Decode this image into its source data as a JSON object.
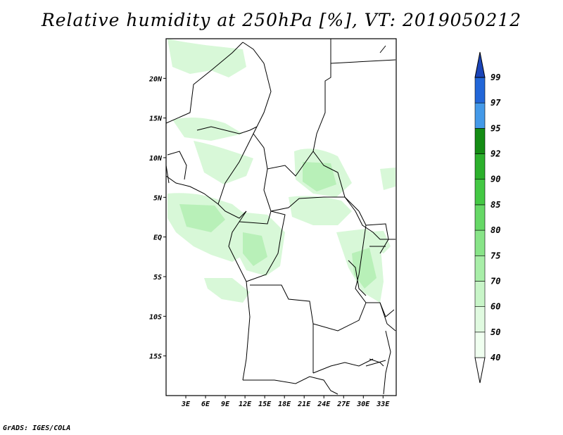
{
  "title": "Relative humidity at 250hPa [%], VT: 2019050212",
  "credit": "GrADS: IGES/COLA",
  "map": {
    "lon_range": [
      0,
      35
    ],
    "lat_range": [
      -20,
      25
    ],
    "lon_ticks": [
      "3E",
      "6E",
      "9E",
      "12E",
      "15E",
      "18E",
      "21E",
      "24E",
      "27E",
      "30E",
      "33E"
    ],
    "lat_ticks": [
      "20N",
      "15N",
      "10N",
      "5N",
      "EQ",
      "5S",
      "10S",
      "15S"
    ]
  },
  "legend": {
    "levels": [
      "40",
      "50",
      "60",
      "70",
      "75",
      "80",
      "85",
      "90",
      "92",
      "95",
      "97",
      "99"
    ],
    "colors": [
      "#f0fff0",
      "#e0fae0",
      "#c8f5c8",
      "#a8eea8",
      "#88e488",
      "#66d866",
      "#44c844",
      "#2cb02c",
      "#148c14",
      "#4499e8",
      "#2266d8",
      "#1a44b8"
    ]
  }
}
